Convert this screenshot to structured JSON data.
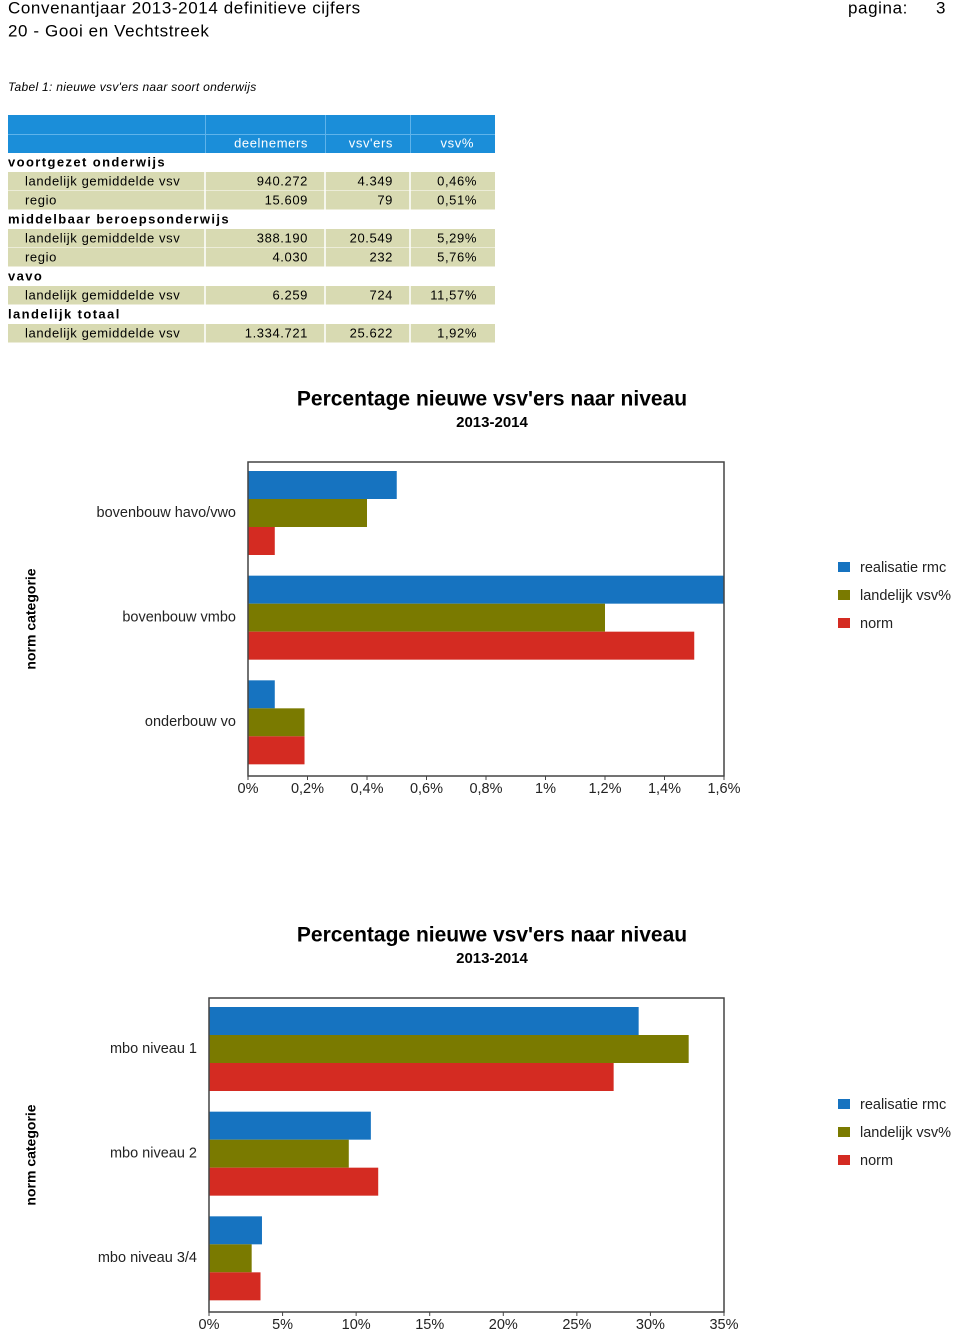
{
  "header": {
    "title": "Convenantjaar 2013-2014 definitieve cijfers",
    "page_label": "pagina:",
    "page_number": "3",
    "region": "20 - Gooi en Vechtstreek"
  },
  "table": {
    "caption": "Tabel 1: nieuwe vsv'ers naar soort onderwijs",
    "columns": [
      "deelnemers",
      "vsv'ers",
      "vsv%"
    ],
    "groups": [
      {
        "name": "voortgezet onderwijs",
        "rows": [
          [
            "landelijk gemiddelde vsv",
            "940.272",
            "4.349",
            "0,46%"
          ],
          [
            "regio",
            "15.609",
            "79",
            "0,51%"
          ]
        ]
      },
      {
        "name": "middelbaar beroepsonderwijs",
        "rows": [
          [
            "landelijk gemiddelde vsv",
            "388.190",
            "20.549",
            "5,29%"
          ],
          [
            "regio",
            "4.030",
            "232",
            "5,76%"
          ]
        ]
      },
      {
        "name": "vavo",
        "rows": [
          [
            "landelijk gemiddelde vsv",
            "6.259",
            "724",
            "11,57%"
          ]
        ]
      },
      {
        "name": "landelijk totaal",
        "rows": [
          [
            "landelijk gemiddelde vsv",
            "1.334.721",
            "25.622",
            "1,92%"
          ]
        ]
      }
    ]
  },
  "chart_data": [
    {
      "type": "bar",
      "orientation": "horizontal",
      "title": "Percentage nieuwe vsv'ers naar niveau",
      "subtitle": "2013-2014",
      "y_label": "norm categorie",
      "categories": [
        "bovenbouw havo/vwo",
        "bovenbouw vmbo",
        "onderbouw vo"
      ],
      "series": [
        {
          "name": "realisatie rmc",
          "color": "#1673c0",
          "values": [
            0.5,
            1.6,
            0.09
          ]
        },
        {
          "name": "landelijk vsv%",
          "color": "#7a7a00",
          "values": [
            0.4,
            1.2,
            0.19
          ]
        },
        {
          "name": "norm",
          "color": "#d42b22",
          "values": [
            0.09,
            1.5,
            0.19
          ]
        }
      ],
      "xlim": [
        0,
        1.6
      ],
      "xticks": [
        {
          "value": 0,
          "label": "0%"
        },
        {
          "value": 0.2,
          "label": "0,2%"
        },
        {
          "value": 0.4,
          "label": "0,4%"
        },
        {
          "value": 0.6,
          "label": "0,6%"
        },
        {
          "value": 0.8,
          "label": "0,8%"
        },
        {
          "value": 1,
          "label": "1%"
        },
        {
          "value": 1.2,
          "label": "1,2%"
        },
        {
          "value": 1.4,
          "label": "1,4%"
        },
        {
          "value": 1.6,
          "label": "1,6%"
        }
      ],
      "legend": "right"
    },
    {
      "type": "bar",
      "orientation": "horizontal",
      "title": "Percentage nieuwe vsv'ers naar niveau",
      "subtitle": "2013-2014",
      "y_label": "norm categorie",
      "categories": [
        "mbo niveau 1",
        "mbo niveau 2",
        "mbo niveau 3/4"
      ],
      "series": [
        {
          "name": "realisatie rmc",
          "color": "#1673c0",
          "values": [
            29.2,
            11,
            3.6
          ]
        },
        {
          "name": "landelijk vsv%",
          "color": "#7a7a00",
          "values": [
            32.6,
            9.5,
            2.9
          ]
        },
        {
          "name": "norm",
          "color": "#d42b22",
          "values": [
            27.5,
            11.5,
            3.5
          ]
        }
      ],
      "xlim": [
        0,
        35
      ],
      "xticks": [
        {
          "value": 0,
          "label": "0%"
        },
        {
          "value": 5,
          "label": "5%"
        },
        {
          "value": 10,
          "label": "10%"
        },
        {
          "value": 15,
          "label": "15%"
        },
        {
          "value": 20,
          "label": "20%"
        },
        {
          "value": 25,
          "label": "25%"
        },
        {
          "value": 30,
          "label": "30%"
        },
        {
          "value": 35,
          "label": "35%"
        }
      ],
      "legend": "right"
    }
  ]
}
